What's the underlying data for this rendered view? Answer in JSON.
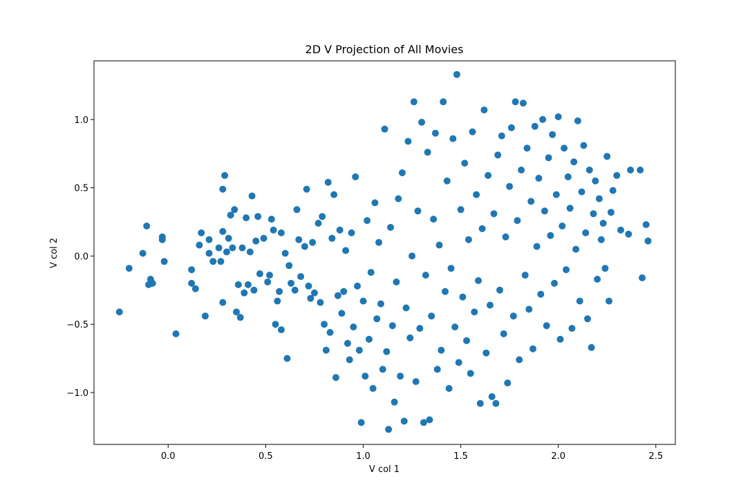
{
  "chart_data": {
    "type": "scatter",
    "title": "2D V Projection of All Movies",
    "xlabel": "V col 1",
    "ylabel": "V col 2",
    "xlim": [
      -0.38,
      2.6
    ],
    "ylim": [
      -1.38,
      1.43
    ],
    "xticks": [
      0.0,
      0.5,
      1.0,
      1.5,
      2.0,
      2.5
    ],
    "xtick_labels": [
      "0.0",
      "0.5",
      "1.0",
      "1.5",
      "2.0",
      "2.5"
    ],
    "yticks": [
      -1.0,
      -0.5,
      0.0,
      0.5,
      1.0
    ],
    "ytick_labels": [
      "−1.0",
      "−0.5",
      "0.0",
      "0.5",
      "1.0"
    ],
    "grid": false,
    "legend": "none",
    "color": "#1f77b4",
    "series": [
      {
        "points": [
          [
            -0.25,
            -0.41
          ],
          [
            -0.2,
            -0.09
          ],
          [
            -0.13,
            0.02
          ],
          [
            -0.11,
            0.22
          ],
          [
            -0.09,
            -0.17
          ],
          [
            -0.08,
            -0.2
          ],
          [
            -0.1,
            -0.21
          ],
          [
            -0.03,
            0.14
          ],
          [
            -0.03,
            0.12
          ],
          [
            -0.02,
            -0.04
          ],
          [
            0.04,
            -0.57
          ],
          [
            0.12,
            -0.1
          ],
          [
            0.12,
            -0.2
          ],
          [
            0.14,
            -0.24
          ],
          [
            0.16,
            0.08
          ],
          [
            0.17,
            0.17
          ],
          [
            0.19,
            -0.44
          ],
          [
            0.21,
            0.12
          ],
          [
            0.21,
            0.02
          ],
          [
            0.23,
            -0.04
          ],
          [
            0.26,
            0.06
          ],
          [
            0.27,
            -0.04
          ],
          [
            0.28,
            0.18
          ],
          [
            0.28,
            0.49
          ],
          [
            0.29,
            0.59
          ],
          [
            0.28,
            -0.34
          ],
          [
            0.3,
            0.03
          ],
          [
            0.31,
            0.13
          ],
          [
            0.32,
            0.3
          ],
          [
            0.33,
            0.06
          ],
          [
            0.34,
            0.34
          ],
          [
            0.35,
            -0.41
          ],
          [
            0.36,
            -0.21
          ],
          [
            0.37,
            -0.45
          ],
          [
            0.38,
            0.06
          ],
          [
            0.39,
            -0.27
          ],
          [
            0.4,
            0.28
          ],
          [
            0.41,
            -0.21
          ],
          [
            0.42,
            0.03
          ],
          [
            0.43,
            0.44
          ],
          [
            0.44,
            -0.25
          ],
          [
            0.45,
            0.11
          ],
          [
            0.46,
            0.29
          ],
          [
            0.47,
            -0.13
          ],
          [
            0.49,
            0.13
          ],
          [
            0.51,
            -0.19
          ],
          [
            0.52,
            -0.14
          ],
          [
            0.53,
            0.27
          ],
          [
            0.54,
            0.19
          ],
          [
            0.55,
            -0.5
          ],
          [
            0.56,
            -0.33
          ],
          [
            0.57,
            -0.26
          ],
          [
            0.58,
            -0.54
          ],
          [
            0.58,
            0.17
          ],
          [
            0.6,
            0.02
          ],
          [
            0.61,
            -0.75
          ],
          [
            0.62,
            -0.07
          ],
          [
            0.63,
            -0.2
          ],
          [
            0.65,
            -0.25
          ],
          [
            0.66,
            0.34
          ],
          [
            0.67,
            0.12
          ],
          [
            0.68,
            -0.15
          ],
          [
            0.7,
            0.07
          ],
          [
            0.71,
            0.49
          ],
          [
            0.72,
            -0.22
          ],
          [
            0.73,
            -0.31
          ],
          [
            0.74,
            0.1
          ],
          [
            0.75,
            -0.27
          ],
          [
            0.77,
            0.24
          ],
          [
            0.78,
            -0.34
          ],
          [
            0.79,
            0.29
          ],
          [
            0.8,
            -0.5
          ],
          [
            0.81,
            -0.69
          ],
          [
            0.82,
            0.54
          ],
          [
            0.83,
            -0.56
          ],
          [
            0.84,
            0.13
          ],
          [
            0.85,
            0.45
          ],
          [
            0.86,
            -0.89
          ],
          [
            0.87,
            -0.29
          ],
          [
            0.88,
            0.19
          ],
          [
            0.89,
            -0.42
          ],
          [
            0.9,
            -0.26
          ],
          [
            0.91,
            0.04
          ],
          [
            0.92,
            -0.64
          ],
          [
            0.93,
            -0.76
          ],
          [
            0.94,
            0.17
          ],
          [
            0.95,
            -0.52
          ],
          [
            0.96,
            0.58
          ],
          [
            0.97,
            -0.22
          ],
          [
            0.98,
            -0.69
          ],
          [
            0.99,
            -1.22
          ],
          [
            1.0,
            -0.33
          ],
          [
            1.01,
            -0.88
          ],
          [
            1.02,
            0.26
          ],
          [
            1.03,
            -0.61
          ],
          [
            1.04,
            -0.12
          ],
          [
            1.05,
            -0.97
          ],
          [
            1.06,
            0.39
          ],
          [
            1.07,
            -0.46
          ],
          [
            1.08,
            0.1
          ],
          [
            1.09,
            -0.35
          ],
          [
            1.1,
            -0.83
          ],
          [
            1.11,
            0.93
          ],
          [
            1.12,
            -0.7
          ],
          [
            1.13,
            -1.27
          ],
          [
            1.14,
            0.21
          ],
          [
            1.15,
            -0.51
          ],
          [
            1.16,
            -1.07
          ],
          [
            1.17,
            -0.19
          ],
          [
            1.18,
            0.42
          ],
          [
            1.19,
            -0.88
          ],
          [
            1.2,
            0.61
          ],
          [
            1.21,
            -1.21
          ],
          [
            1.22,
            -0.38
          ],
          [
            1.23,
            0.84
          ],
          [
            1.24,
            -0.6
          ],
          [
            1.25,
            0.0
          ],
          [
            1.26,
            1.13
          ],
          [
            1.27,
            -0.92
          ],
          [
            1.28,
            0.33
          ],
          [
            1.29,
            -0.53
          ],
          [
            1.3,
            0.98
          ],
          [
            1.31,
            -1.22
          ],
          [
            1.32,
            -0.14
          ],
          [
            1.33,
            0.76
          ],
          [
            1.34,
            -1.2
          ],
          [
            1.35,
            -0.44
          ],
          [
            1.36,
            0.27
          ],
          [
            1.37,
            0.9
          ],
          [
            1.38,
            -0.83
          ],
          [
            1.39,
            0.08
          ],
          [
            1.4,
            -0.69
          ],
          [
            1.41,
            1.13
          ],
          [
            1.42,
            -0.26
          ],
          [
            1.43,
            0.55
          ],
          [
            1.44,
            -0.97
          ],
          [
            1.45,
            -0.09
          ],
          [
            1.46,
            0.86
          ],
          [
            1.47,
            -0.52
          ],
          [
            1.48,
            1.33
          ],
          [
            1.49,
            -0.78
          ],
          [
            1.5,
            0.34
          ],
          [
            1.51,
            -0.3
          ],
          [
            1.52,
            0.68
          ],
          [
            1.53,
            -0.62
          ],
          [
            1.54,
            0.12
          ],
          [
            1.55,
            -0.86
          ],
          [
            1.56,
            0.91
          ],
          [
            1.57,
            -0.41
          ],
          [
            1.58,
            0.45
          ],
          [
            1.59,
            -0.18
          ],
          [
            1.6,
            -1.08
          ],
          [
            1.61,
            0.2
          ],
          [
            1.62,
            1.07
          ],
          [
            1.63,
            -0.71
          ],
          [
            1.64,
            0.59
          ],
          [
            1.65,
            -0.36
          ],
          [
            1.66,
            -1.03
          ],
          [
            1.67,
            0.31
          ],
          [
            1.68,
            -1.08
          ],
          [
            1.69,
            0.74
          ],
          [
            1.7,
            -0.25
          ],
          [
            1.71,
            0.88
          ],
          [
            1.72,
            -0.57
          ],
          [
            1.73,
            0.14
          ],
          [
            1.74,
            -0.93
          ],
          [
            1.75,
            0.51
          ],
          [
            1.76,
            0.94
          ],
          [
            1.77,
            -0.44
          ],
          [
            1.78,
            1.13
          ],
          [
            1.79,
            0.26
          ],
          [
            1.8,
            -0.76
          ],
          [
            1.81,
            0.63
          ],
          [
            1.82,
            1.12
          ],
          [
            1.83,
            -0.14
          ],
          [
            1.84,
            0.79
          ],
          [
            1.85,
            -0.39
          ],
          [
            1.86,
            0.4
          ],
          [
            1.87,
            -0.68
          ],
          [
            1.88,
            0.95
          ],
          [
            1.89,
            0.07
          ],
          [
            1.9,
            0.57
          ],
          [
            1.91,
            -0.28
          ],
          [
            1.92,
            1.0
          ],
          [
            1.93,
            0.33
          ],
          [
            1.94,
            -0.51
          ],
          [
            1.95,
            0.72
          ],
          [
            1.96,
            0.15
          ],
          [
            1.97,
            0.89
          ],
          [
            1.98,
            -0.2
          ],
          [
            1.99,
            0.45
          ],
          [
            2.0,
            1.02
          ],
          [
            2.01,
            -0.61
          ],
          [
            2.02,
            0.22
          ],
          [
            2.03,
            0.79
          ],
          [
            2.04,
            -0.1
          ],
          [
            2.05,
            0.58
          ],
          [
            2.06,
            0.35
          ],
          [
            2.07,
            -0.53
          ],
          [
            2.08,
            0.69
          ],
          [
            2.09,
            0.05
          ],
          [
            2.1,
            0.99
          ],
          [
            2.11,
            -0.33
          ],
          [
            2.12,
            0.47
          ],
          [
            2.13,
            0.81
          ],
          [
            2.14,
            0.17
          ],
          [
            2.15,
            -0.46
          ],
          [
            2.16,
            0.63
          ],
          [
            2.17,
            -0.67
          ],
          [
            2.18,
            0.31
          ],
          [
            2.19,
            0.55
          ],
          [
            2.2,
            -0.17
          ],
          [
            2.21,
            0.42
          ],
          [
            2.22,
            0.12
          ],
          [
            2.23,
            0.24
          ],
          [
            2.24,
            -0.09
          ],
          [
            2.25,
            0.73
          ],
          [
            2.26,
            -0.33
          ],
          [
            2.27,
            0.32
          ],
          [
            2.28,
            0.48
          ],
          [
            2.3,
            0.59
          ],
          [
            2.32,
            0.19
          ],
          [
            2.36,
            0.16
          ],
          [
            2.37,
            0.63
          ],
          [
            2.42,
            0.63
          ],
          [
            2.43,
            -0.16
          ],
          [
            2.45,
            0.23
          ],
          [
            2.46,
            0.11
          ]
        ]
      }
    ]
  }
}
